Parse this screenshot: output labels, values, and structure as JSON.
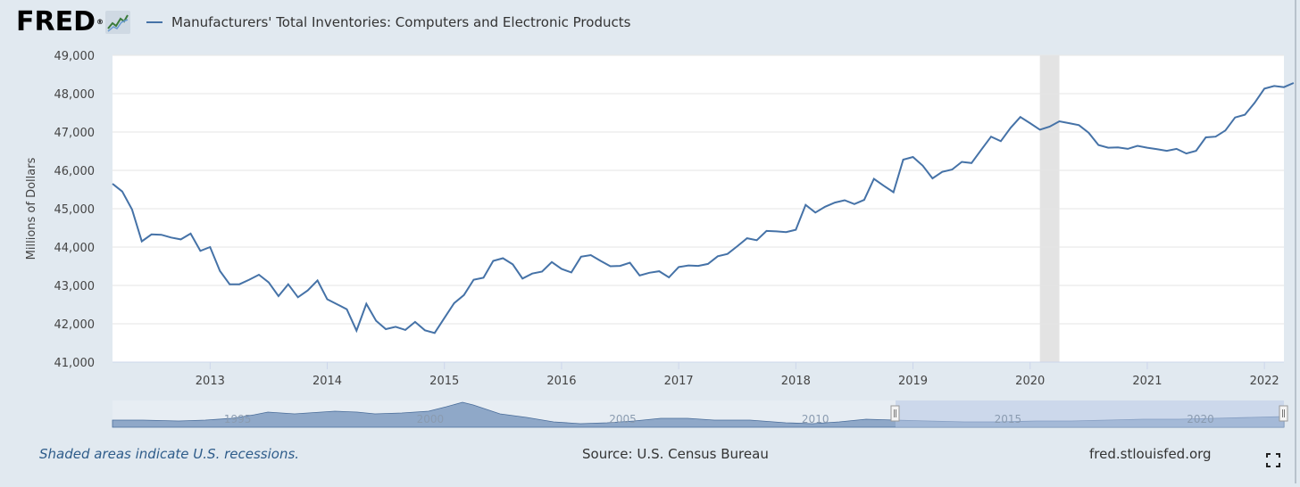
{
  "header": {
    "logo_text": "FRED",
    "logo_reg": "®",
    "legend_label": "Manufacturers' Total Inventories: Computers and Electronic Products"
  },
  "footer": {
    "recession_note": "Shaded areas indicate U.S. recessions.",
    "source": "Source: U.S. Census Bureau",
    "site": "fred.stlouisfed.org"
  },
  "colors": {
    "line": "#4572a7",
    "recession": "#e3e3e3",
    "navigator_fill": "#8fa8c8",
    "navigator_selection": "#b7c7e3",
    "background": "#e1e9f0"
  },
  "chart_data": {
    "type": "line",
    "title": "Manufacturers' Total Inventories: Computers and Electronic Products",
    "ylabel": "Millions of Dollars",
    "xlabel": "",
    "x_start": "2012-03",
    "x_end": "2022-03",
    "ylim": [
      41000,
      49000
    ],
    "yticks": [
      "41,000",
      "42,000",
      "43,000",
      "44,000",
      "45,000",
      "46,000",
      "47,000",
      "48,000",
      "49,000"
    ],
    "xticks": [
      "2013",
      "2014",
      "2015",
      "2016",
      "2017",
      "2018",
      "2019",
      "2020",
      "2021",
      "2022"
    ],
    "grid": true,
    "recessions": [
      {
        "start": "2020-02",
        "end": "2020-04"
      }
    ],
    "series": [
      {
        "name": "Manufacturers' Total Inventories: Computers and Electronic Products",
        "start": "2012-03",
        "frequency": "monthly",
        "values": [
          45650,
          45450,
          44980,
          44150,
          44330,
          44320,
          44250,
          44200,
          44350,
          43900,
          44000,
          43380,
          43030,
          43030,
          43150,
          43280,
          43080,
          42720,
          43030,
          42690,
          42870,
          43130,
          42640,
          42510,
          42380,
          41820,
          42520,
          42080,
          41860,
          41920,
          41840,
          42050,
          41830,
          41760,
          42150,
          42540,
          42750,
          43150,
          43200,
          43640,
          43710,
          43550,
          43180,
          43310,
          43360,
          43610,
          43430,
          43340,
          43750,
          43790,
          43640,
          43500,
          43510,
          43590,
          43260,
          43330,
          43370,
          43210,
          43480,
          43520,
          43510,
          43560,
          43760,
          43820,
          44020,
          44230,
          44180,
          44420,
          44410,
          44390,
          44450,
          45100,
          44900,
          45050,
          45160,
          45220,
          45120,
          45230,
          45780,
          45600,
          45430,
          46280,
          46350,
          46120,
          45790,
          45960,
          46020,
          46220,
          46190,
          46540,
          46880,
          46760,
          47110,
          47390,
          47230,
          47060,
          47140,
          47280,
          47230,
          47180,
          46980,
          46660,
          46590,
          46600,
          46560,
          46640,
          46590,
          46550,
          46510,
          46560,
          46440,
          46510,
          46860,
          46880,
          47040,
          47380,
          47450,
          47760,
          48130,
          48200,
          48170,
          48280
        ]
      }
    ],
    "navigator": {
      "labels": [
        "1995",
        "2000",
        "2005",
        "2010",
        "2015",
        "2020"
      ],
      "selection_start": "2012-03",
      "selection_end": "2022-03"
    }
  }
}
